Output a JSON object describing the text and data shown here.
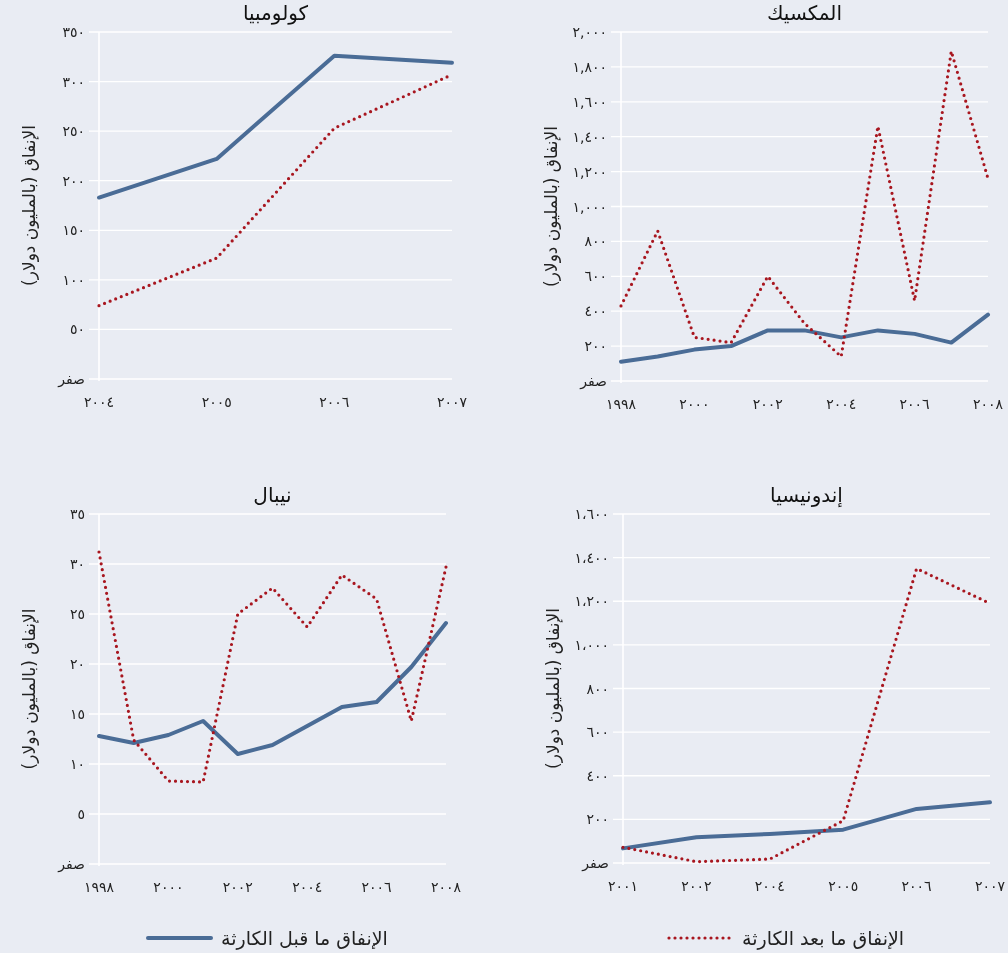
{
  "chart_data": [
    {
      "type": "line",
      "title": "كولومبيا",
      "ylabel": "الإنفاق (بالمليون دولار)",
      "categories": [
        "٢٠٠٤",
        "٢٠٠٥",
        "٢٠٠٦",
        "٢٠٠٧"
      ],
      "ylim": [
        0,
        350
      ],
      "yticks": [
        {
          "value": 0,
          "label": "صفر"
        },
        {
          "value": 50,
          "label": "٥٠"
        },
        {
          "value": 100,
          "label": "١٠٠"
        },
        {
          "value": 150,
          "label": "١٥٠"
        },
        {
          "value": 200,
          "label": "٢٠٠"
        },
        {
          "value": 250,
          "label": "٢٥٠"
        },
        {
          "value": 300,
          "label": "٣٠٠"
        },
        {
          "value": 350,
          "label": "٣٥٠"
        }
      ],
      "grid": "y",
      "series": [
        {
          "color": "#4a6c96",
          "line_style": "solid",
          "values": [
            183,
            222,
            326,
            319
          ]
        },
        {
          "color": "#a8161f",
          "line_style": "dotted",
          "values": [
            74,
            122,
            253,
            307
          ]
        }
      ]
    },
    {
      "type": "line",
      "title": "المكسيك",
      "ylabel": "الإنفاق (بالمليون دولار)",
      "x": [
        1998,
        1999,
        2000,
        2001,
        2002,
        2003,
        2004,
        2005,
        2006,
        2007,
        2008
      ],
      "xlim": [
        1998,
        2008
      ],
      "xticks": [
        {
          "value": 1998,
          "label": "١٩٩٨"
        },
        {
          "value": 2000,
          "label": "٢٠٠٠"
        },
        {
          "value": 2002,
          "label": "٢٠٠٢"
        },
        {
          "value": 2004,
          "label": "٢٠٠٤"
        },
        {
          "value": 2006,
          "label": "٢٠٠٦"
        },
        {
          "value": 2008,
          "label": "٢٠٠٨"
        }
      ],
      "ylim": [
        0,
        2000
      ],
      "yticks": [
        {
          "value": 0,
          "label": "صفر"
        },
        {
          "value": 200,
          "label": "٢٠٠"
        },
        {
          "value": 400,
          "label": "٤٠٠"
        },
        {
          "value": 600,
          "label": "٦٠٠"
        },
        {
          "value": 800,
          "label": "٨٠٠"
        },
        {
          "value": 1000,
          "label": "١,٠٠٠"
        },
        {
          "value": 1200,
          "label": "١,٢٠٠"
        },
        {
          "value": 1400,
          "label": "١,٤٠٠"
        },
        {
          "value": 1600,
          "label": "١,٦٠٠"
        },
        {
          "value": 1800,
          "label": "١,٨٠٠"
        },
        {
          "value": 2000,
          "label": "٢,٠٠٠"
        }
      ],
      "grid": "y",
      "series": [
        {
          "color": "#4a6c96",
          "line_style": "solid",
          "values": [
            110,
            140,
            180,
            200,
            290,
            290,
            250,
            290,
            270,
            220,
            380
          ]
        },
        {
          "color": "#a8161f",
          "line_style": "dotted",
          "values": [
            430,
            860,
            250,
            220,
            600,
            330,
            140,
            1460,
            460,
            1890,
            1160
          ]
        }
      ]
    },
    {
      "type": "line",
      "title": "نيبال",
      "ylabel": "الإنفاق (بالمليون دولار)",
      "x": [
        1998,
        1999,
        2000,
        2001,
        2002,
        2003,
        2004,
        2005,
        2006,
        2007,
        2008
      ],
      "xlim": [
        1998,
        2008
      ],
      "xticks": [
        {
          "value": 1998,
          "label": "١٩٩٨"
        },
        {
          "value": 2000,
          "label": "٢٠٠٠"
        },
        {
          "value": 2002,
          "label": "٢٠٠٢"
        },
        {
          "value": 2004,
          "label": "٢٠٠٤"
        },
        {
          "value": 2006,
          "label": "٢٠٠٦"
        },
        {
          "value": 2008,
          "label": "٢٠٠٨"
        }
      ],
      "ylim": [
        0,
        35
      ],
      "yticks": [
        {
          "value": 0,
          "label": "صفر"
        },
        {
          "value": 5,
          "label": "٥"
        },
        {
          "value": 10,
          "label": "١٠"
        },
        {
          "value": 15,
          "label": "١٥"
        },
        {
          "value": 20,
          "label": "٢٠"
        },
        {
          "value": 25,
          "label": "٢٥"
        },
        {
          "value": 30,
          "label": "٣٠"
        },
        {
          "value": 35,
          "label": "٣٥"
        }
      ],
      "grid": "y",
      "legend": "bottom",
      "series": [
        {
          "name": "الإنفاق ما قبل الكارثة",
          "color": "#4a6c96",
          "line_style": "solid",
          "values": [
            12.8,
            12.1,
            12.9,
            14.3,
            11.0,
            11.9,
            13.8,
            15.7,
            16.2,
            19.7,
            24.1
          ]
        },
        {
          "name": "الإنفاق ما بعد الكارثة",
          "color": "#a8161f",
          "line_style": "dotted",
          "values": [
            31.2,
            12.4,
            8.3,
            8.2,
            25.0,
            27.6,
            23.7,
            28.9,
            26.5,
            14.3,
            29.7
          ]
        }
      ]
    },
    {
      "type": "line",
      "title": "إندونيسيا",
      "ylabel": "الإنفاق (بالمليون دولار)",
      "categories": [
        "٢٠٠١",
        "٢٠٠٢",
        "٢٠٠٤",
        "٢٠٠٥",
        "٢٠٠٦",
        "٢٠٠٧"
      ],
      "ylim": [
        0,
        1600
      ],
      "yticks": [
        {
          "value": 0,
          "label": "صفر"
        },
        {
          "value": 200,
          "label": "٢٠٠"
        },
        {
          "value": 400,
          "label": "٤٠٠"
        },
        {
          "value": 600,
          "label": "٦٠٠"
        },
        {
          "value": 800,
          "label": "٨٠٠"
        },
        {
          "value": 1000,
          "label": "١،٠٠٠"
        },
        {
          "value": 1200,
          "label": "١،٢٠٠"
        },
        {
          "value": 1400,
          "label": "١،٤٠٠"
        },
        {
          "value": 1600,
          "label": "١،٦٠٠"
        }
      ],
      "grid": "y",
      "series": [
        {
          "color": "#4a6c96",
          "line_style": "solid",
          "values": [
            67,
            118,
            133,
            153,
            248,
            278
          ]
        },
        {
          "color": "#a8161f",
          "line_style": "dotted",
          "values": [
            72,
            6,
            18,
            194,
            1350,
            1190
          ]
        }
      ]
    }
  ]
}
